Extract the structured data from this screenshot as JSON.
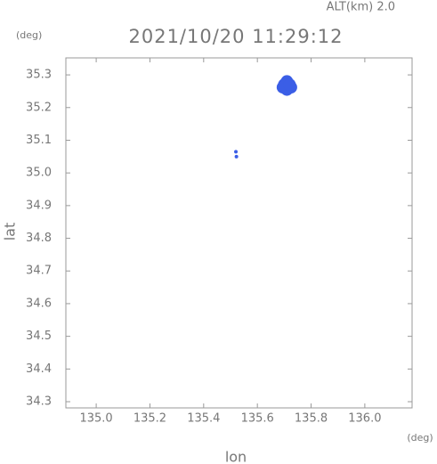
{
  "chart_data": {
    "type": "scatter",
    "title": "2021/10/20 11:29:12",
    "subtitle": "ALT(km) 2.0",
    "y_unit": "(deg)",
    "x_unit": "(deg)",
    "xlabel": "lon",
    "ylabel": "lat",
    "xlim": [
      134.887,
      136.176
    ],
    "ylim": [
      34.281,
      35.352
    ],
    "xticks": [
      {
        "value": 135.0,
        "label": "135.0"
      },
      135.2,
      135.4,
      135.6,
      135.8,
      {
        "value": 136.0,
        "label": "136.0"
      }
    ],
    "yticks": [
      34.3,
      34.4,
      34.5,
      34.6,
      34.7,
      34.8,
      34.9,
      {
        "value": 35.0,
        "label": "35.0"
      },
      35.1,
      35.2,
      35.3
    ],
    "series": [
      {
        "color": "#3b5ee6",
        "x": [
          135.71,
          135.695,
          135.725,
          135.71,
          135.7,
          135.72,
          135.52,
          135.522
        ],
        "y": [
          35.28,
          35.262,
          35.262,
          35.255,
          35.27,
          35.27,
          35.065,
          35.05
        ]
      }
    ]
  }
}
